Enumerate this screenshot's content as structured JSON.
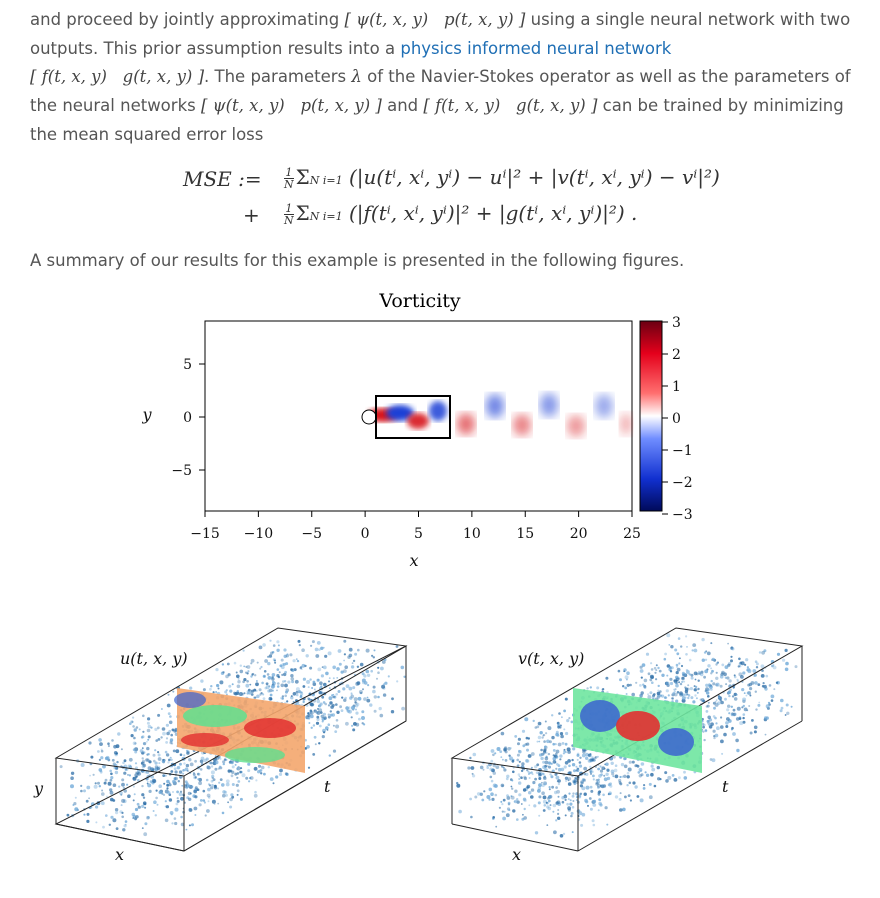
{
  "para1": {
    "t1": "and proceed by jointly approximating",
    "m1a": "ψ(t, x, y)",
    "m1b": "p(t, x, y)",
    "t2": "using a single neural network with two outputs. This prior assumption results into a",
    "link": "physics informed neural network",
    "m2a": "f(t, x, y)",
    "m2b": "g(t, x, y)",
    "t3": ". The parameters",
    "lambda": "λ",
    "t4": "of the Navier-Stokes operator as well as the parameters of the neural networks",
    "t5": "and",
    "t6": "can be trained by minimizing the mean squared error loss"
  },
  "equation": {
    "lhs": "MSE :=",
    "plus": "+",
    "frac_num": "1",
    "frac_den": "N",
    "line1": "Σ",
    "line1_limits": "N i=1",
    "line1_body": "(|u(tⁱ, xⁱ, yⁱ) − uⁱ|² + |v(tⁱ, xⁱ, yⁱ) − vⁱ|²)",
    "line2_body": "(|f(tⁱ, xⁱ, yⁱ)|² + |g(tⁱ, xⁱ, yⁱ)|²) ."
  },
  "summary": "A summary of our results for this example is presented in the following figures.",
  "vorticity_figure": {
    "title": "Vorticity",
    "xlabel": "x",
    "ylabel": "y",
    "xticks": [
      "−15",
      "−10",
      "−5",
      "0",
      "5",
      "10",
      "15",
      "20",
      "25"
    ],
    "yticks": [
      "5",
      "0",
      "−5"
    ],
    "colorbar_ticks": [
      "3",
      "2",
      "1",
      "0",
      "−1",
      "−2",
      "−3"
    ],
    "colors": {
      "pos": "#d7191c",
      "neg": "#1a3fd6"
    }
  },
  "cube_u": {
    "label": "u(t, x, y)",
    "x": "x",
    "y": "y",
    "t": "t"
  },
  "cube_v": {
    "label": "v(t, x, y)",
    "x": "x",
    "y": "y",
    "t": "t"
  }
}
